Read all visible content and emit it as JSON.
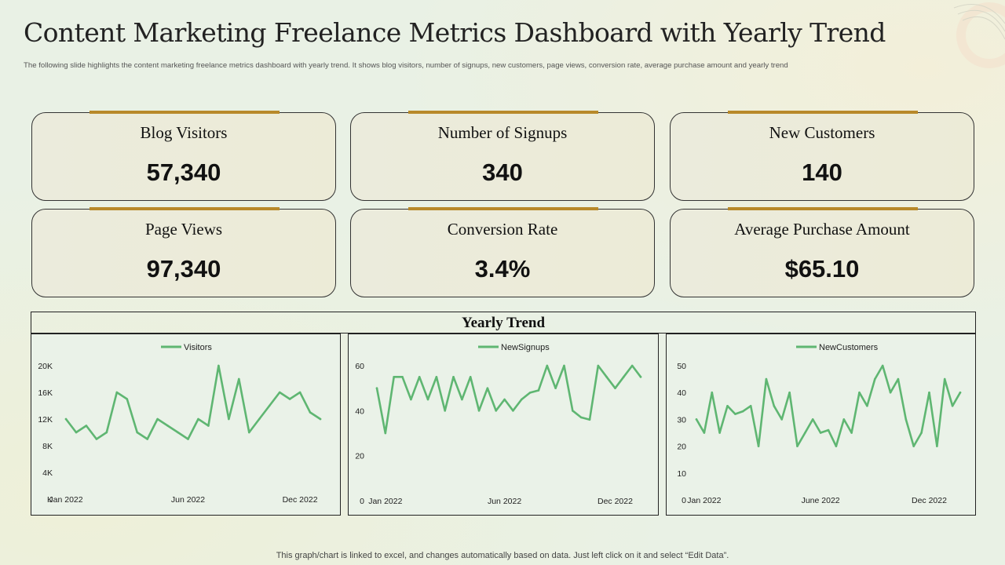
{
  "header": {
    "title": "Content Marketing Freelance Metrics Dashboard with Yearly Trend",
    "subtitle": "The following slide highlights the content marketing  freelance metrics dashboard with yearly trend. It shows blog visitors, number of signups, new customers, page views, conversion rate, average purchase amount and yearly trend"
  },
  "metrics": [
    {
      "label": "Blog Visitors",
      "value": "57,340"
    },
    {
      "label": "Number of Signups",
      "value": "340"
    },
    {
      "label": "New Customers",
      "value": "140"
    },
    {
      "label": "Page Views",
      "value": "97,340"
    },
    {
      "label": "Conversion  Rate",
      "value": "3.4%"
    },
    {
      "label": "Average Purchase Amount",
      "value": "$65.10"
    }
  ],
  "trend": {
    "title": "Yearly Trend"
  },
  "footer": "This graph/chart is linked to excel,  and changes automatically based on data. Just left click on it and select “Edit Data”.",
  "colors": {
    "accent": "#b8892a",
    "line": "#5fb672",
    "card_border": "#333333"
  },
  "chart_data": [
    {
      "type": "line",
      "legend": "Visitors",
      "legend_position": "top",
      "grid": false,
      "yticks": [
        "K",
        "4K",
        "8K",
        "12K",
        "16K",
        "20K"
      ],
      "ytick_values": [
        0,
        4000,
        8000,
        12000,
        16000,
        20000
      ],
      "ylim": [
        0,
        20000
      ],
      "xticks": [
        {
          "label": "Jan 2022",
          "index": 0
        },
        {
          "label": "Jun 2022",
          "index": 12
        },
        {
          "label": "Dec 2022",
          "index": 23
        }
      ],
      "values": [
        12000,
        10000,
        11000,
        9000,
        10000,
        16000,
        15000,
        10000,
        9000,
        12000,
        11000,
        10000,
        9000,
        12000,
        11000,
        20000,
        12000,
        18000,
        10000,
        12000,
        14000,
        16000,
        15000,
        16000,
        13000,
        12000
      ]
    },
    {
      "type": "line",
      "legend": "NewSignups",
      "legend_position": "top",
      "grid": false,
      "yticks": [
        "0",
        "20",
        "40",
        "60"
      ],
      "ytick_values": [
        0,
        20,
        40,
        60
      ],
      "ylim": [
        0,
        60
      ],
      "xticks": [
        {
          "label": "Jan 2022",
          "index": 1
        },
        {
          "label": "Jun 2022",
          "index": 15
        },
        {
          "label": "Dec 2022",
          "index": 28
        }
      ],
      "values": [
        50,
        30,
        55,
        55,
        45,
        55,
        45,
        55,
        40,
        55,
        45,
        55,
        40,
        50,
        40,
        45,
        40,
        45,
        48,
        49,
        60,
        50,
        60,
        40,
        37,
        36,
        60,
        55,
        50,
        55,
        60,
        55
      ]
    },
    {
      "type": "line",
      "legend": "NewCustomers",
      "legend_position": "top",
      "grid": false,
      "yticks": [
        "0",
        "10",
        "20",
        "30",
        "40",
        "50"
      ],
      "ytick_values": [
        0,
        10,
        20,
        30,
        40,
        50
      ],
      "ylim": [
        0,
        50
      ],
      "xticks": [
        {
          "label": "Jan 2022",
          "index": 1
        },
        {
          "label": "June 2022",
          "index": 16
        },
        {
          "label": "Dec 2022",
          "index": 30
        }
      ],
      "values": [
        30,
        25,
        40,
        25,
        35,
        32,
        33,
        35,
        20,
        45,
        35,
        30,
        40,
        20,
        25,
        30,
        25,
        26,
        20,
        30,
        25,
        40,
        35,
        45,
        50,
        40,
        45,
        30,
        20,
        25,
        40,
        20,
        45,
        35,
        40
      ]
    }
  ]
}
